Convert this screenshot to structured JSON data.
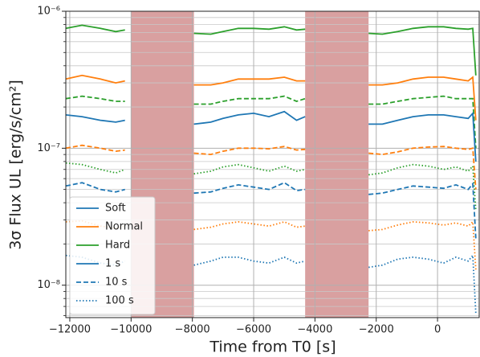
{
  "chart_data": {
    "type": "line",
    "xlabel": "Time from T0 [s]",
    "ylabel": "3σ Flux UL [erg/s/cm²]",
    "log_y": true,
    "grid": true,
    "xlim": [
      -12130,
      1360
    ],
    "ylim": [
      5.8e-09,
      1e-06
    ],
    "xticks": [
      {
        "value": -12000,
        "label": "−12000"
      },
      {
        "value": -10000,
        "label": "−10000"
      },
      {
        "value": -8000,
        "label": "−8000"
      },
      {
        "value": -6000,
        "label": "−6000"
      },
      {
        "value": -4000,
        "label": "−4000"
      },
      {
        "value": -2000,
        "label": "−2000"
      },
      0
    ],
    "yticks": [
      {
        "value": 1e-08,
        "label": "10⁻⁸"
      },
      {
        "value": 1e-07,
        "label": "10⁻⁷"
      },
      {
        "value": 1e-06,
        "label": "10⁻⁶"
      }
    ],
    "yminorticks": [
      6e-09,
      7e-09,
      8e-09,
      9e-09,
      2e-08,
      3e-08,
      4e-08,
      5e-08,
      6e-08,
      7e-08,
      8e-08,
      9e-08,
      2e-07,
      3e-07,
      4e-07,
      5e-07,
      6e-07,
      7e-07,
      8e-07,
      9e-07
    ],
    "shaded": [
      [
        -10000,
        -7950
      ],
      [
        -4320,
        -2250
      ]
    ],
    "shade_color": "#d9a0a0",
    "legend_position": "lower left",
    "legend": [
      {
        "name": "Soft",
        "color": "#1f77b4",
        "style": "solid"
      },
      {
        "name": "Normal",
        "color": "#ff7f0e",
        "style": "solid"
      },
      {
        "name": "Hard",
        "color": "#2ca02c",
        "style": "solid"
      },
      {
        "name": "1 s",
        "color": "#1f77b4",
        "style": "solid"
      },
      {
        "name": "10 s",
        "color": "#1f77b4",
        "style": "dashed"
      },
      {
        "name": "100 s",
        "color": "#1f77b4",
        "style": "dotted"
      }
    ],
    "x": [
      -12130,
      -11600,
      -11000,
      -10500,
      -10200,
      -9000,
      -7950,
      -7400,
      -7000,
      -6500,
      -6000,
      -5500,
      -5000,
      -4600,
      -4320,
      -3300,
      -2250,
      -1800,
      -1300,
      -800,
      -300,
      200,
      600,
      1000,
      1150,
      1250
    ],
    "series": [
      {
        "color": "#2ca02c",
        "style": "solid",
        "values": [
          7.5e-07,
          7.9e-07,
          7.5e-07,
          7.1e-07,
          7.3e-07,
          null,
          6.9e-07,
          6.8e-07,
          7.1e-07,
          7.5e-07,
          7.5e-07,
          7.4e-07,
          7.7e-07,
          7.3e-07,
          7.4e-07,
          null,
          6.9e-07,
          6.8e-07,
          7.1e-07,
          7.5e-07,
          7.7e-07,
          7.7e-07,
          7.5e-07,
          7.4e-07,
          7.5e-07,
          3.4e-07
        ]
      },
      {
        "color": "#ff7f0e",
        "style": "solid",
        "values": [
          3.2e-07,
          3.4e-07,
          3.2e-07,
          3e-07,
          3.1e-07,
          null,
          2.9e-07,
          2.9e-07,
          3e-07,
          3.2e-07,
          3.2e-07,
          3.2e-07,
          3.3e-07,
          3.1e-07,
          3.1e-07,
          null,
          2.9e-07,
          2.9e-07,
          3e-07,
          3.2e-07,
          3.3e-07,
          3.3e-07,
          3.2e-07,
          3.1e-07,
          3.3e-07,
          1.6e-07
        ]
      },
      {
        "color": "#2ca02c",
        "style": "dashed",
        "values": [
          2.3e-07,
          2.4e-07,
          2.3e-07,
          2.2e-07,
          2.2e-07,
          null,
          2.1e-07,
          2.1e-07,
          2.2e-07,
          2.3e-07,
          2.3e-07,
          2.3e-07,
          2.4e-07,
          2.2e-07,
          2.3e-07,
          null,
          2.1e-07,
          2.1e-07,
          2.2e-07,
          2.3e-07,
          2.35e-07,
          2.4e-07,
          2.3e-07,
          2.3e-07,
          2.3e-07,
          1e-07
        ]
      },
      {
        "color": "#1f77b4",
        "style": "solid",
        "values": [
          1.75e-07,
          1.7e-07,
          1.6e-07,
          1.55e-07,
          1.6e-07,
          null,
          1.5e-07,
          1.55e-07,
          1.65e-07,
          1.75e-07,
          1.8e-07,
          1.7e-07,
          1.85e-07,
          1.6e-07,
          1.7e-07,
          null,
          1.5e-07,
          1.5e-07,
          1.6e-07,
          1.7e-07,
          1.75e-07,
          1.75e-07,
          1.7e-07,
          1.65e-07,
          1.8e-07,
          8e-08
        ]
      },
      {
        "color": "#ff7f0e",
        "style": "dashed",
        "values": [
          1e-07,
          1.05e-07,
          1e-07,
          9.5e-08,
          9.7e-08,
          null,
          9.2e-08,
          9e-08,
          9.5e-08,
          1e-07,
          1e-07,
          9.9e-08,
          1.03e-07,
          9.7e-08,
          9.8e-08,
          null,
          9.2e-08,
          9e-08,
          9.4e-08,
          1e-07,
          1.02e-07,
          1.03e-07,
          1e-07,
          9.8e-08,
          1e-07,
          5e-08
        ]
      },
      {
        "color": "#2ca02c",
        "style": "dotted",
        "values": [
          7.8e-08,
          7.6e-08,
          7e-08,
          6.6e-08,
          7e-08,
          null,
          6.5e-08,
          6.8e-08,
          7.3e-08,
          7.6e-08,
          7.2e-08,
          6.8e-08,
          7.4e-08,
          6.8e-08,
          7e-08,
          null,
          6.4e-08,
          6.6e-08,
          7.2e-08,
          7.6e-08,
          7.4e-08,
          7e-08,
          7.3e-08,
          6.8e-08,
          7.4e-08,
          3.5e-08
        ]
      },
      {
        "color": "#1f77b4",
        "style": "dashed",
        "values": [
          5.3e-08,
          5.6e-08,
          5e-08,
          4.8e-08,
          5e-08,
          null,
          4.7e-08,
          4.8e-08,
          5.1e-08,
          5.4e-08,
          5.2e-08,
          5e-08,
          5.6e-08,
          4.9e-08,
          5e-08,
          null,
          4.6e-08,
          4.7e-08,
          5e-08,
          5.3e-08,
          5.2e-08,
          5.1e-08,
          5.4e-08,
          5e-08,
          5.5e-08,
          2.2e-08
        ]
      },
      {
        "color": "#ff7f0e",
        "style": "dotted",
        "values": [
          2.9e-08,
          2.95e-08,
          2.7e-08,
          2.6e-08,
          2.7e-08,
          null,
          2.55e-08,
          2.65e-08,
          2.8e-08,
          2.9e-08,
          2.8e-08,
          2.7e-08,
          2.9e-08,
          2.65e-08,
          2.7e-08,
          null,
          2.5e-08,
          2.55e-08,
          2.75e-08,
          2.9e-08,
          2.85e-08,
          2.75e-08,
          2.85e-08,
          2.7e-08,
          2.9e-08,
          1.3e-08
        ]
      },
      {
        "color": "#1f77b4",
        "style": "dotted",
        "values": [
          1.65e-08,
          1.6e-08,
          1.45e-08,
          1.4e-08,
          1.5e-08,
          null,
          1.4e-08,
          1.5e-08,
          1.6e-08,
          1.6e-08,
          1.5e-08,
          1.45e-08,
          1.6e-08,
          1.45e-08,
          1.5e-08,
          null,
          1.35e-08,
          1.4e-08,
          1.55e-08,
          1.6e-08,
          1.55e-08,
          1.45e-08,
          1.6e-08,
          1.5e-08,
          1.65e-08,
          6.2e-09
        ]
      }
    ]
  }
}
